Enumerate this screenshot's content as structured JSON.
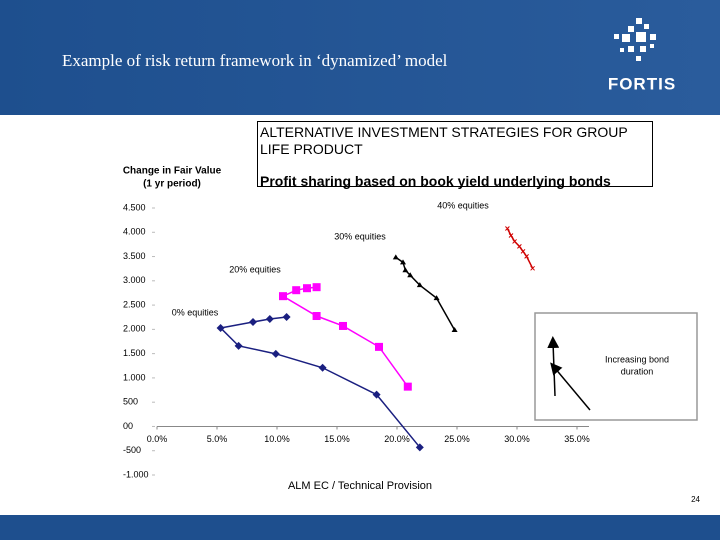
{
  "slide": {
    "title": "Example of risk return framework in ‘dynamized’ model",
    "logo": "FORTIS",
    "page_number": "24",
    "inset_text": [
      "Increasing bond",
      "duration"
    ]
  },
  "chart_data": {
    "type": "line",
    "title": "ALTERNATIVE INVESTMENT STRATEGIES FOR GROUP LIFE PRODUCT",
    "subtitle": "Profit sharing based on book yield underlying bonds",
    "ylabel": [
      "Change in Fair Value",
      "(1 yr period)"
    ],
    "xlabel": "ALM EC / Technical Provision",
    "xlim": [
      0,
      35
    ],
    "ylim": [
      -1000,
      4500
    ],
    "xticks": [
      {
        "value": 0,
        "label": "0.0%"
      },
      {
        "value": 5,
        "label": "5.0%"
      },
      {
        "value": 10,
        "label": "10.0%"
      },
      {
        "value": 15,
        "label": "15.0%"
      },
      {
        "value": 20,
        "label": "20.0%"
      },
      {
        "value": 25,
        "label": "25.0%"
      },
      {
        "value": 30,
        "label": "30.0%"
      },
      {
        "value": 35,
        "label": "35.0%"
      }
    ],
    "yticks": [
      {
        "value": 4500,
        "label": "4.500"
      },
      {
        "value": 4000,
        "label": "4.000"
      },
      {
        "value": 3500,
        "label": "3.500"
      },
      {
        "value": 3000,
        "label": "3.000"
      },
      {
        "value": 2500,
        "label": "2.500"
      },
      {
        "value": 2000,
        "label": "2.000"
      },
      {
        "value": 1500,
        "label": "1.500"
      },
      {
        "value": 1000,
        "label": "1.000"
      },
      {
        "value": 500,
        "label": "500"
      },
      {
        "value": 0,
        "label": "00"
      },
      {
        "value": -500,
        "label": "-500"
      },
      {
        "value": -1000,
        "label": "-1.000"
      }
    ],
    "series": [
      {
        "name": "0% equities",
        "color": "#1a1f80",
        "marker": "diamond",
        "x": [
          10.8,
          9.4,
          8.0,
          5.3,
          6.8,
          9.9,
          13.8,
          18.3,
          21.9
        ],
        "values": [
          2254,
          2213,
          2152,
          2029,
          1660,
          1496,
          1209,
          656,
          -430
        ]
      },
      {
        "name": "20% equities",
        "color": "#ff00ff",
        "marker": "square",
        "x": [
          13.3,
          12.5,
          11.6,
          10.5,
          13.3,
          15.5,
          18.5,
          20.9
        ],
        "values": [
          2869,
          2848,
          2807,
          2684,
          2275,
          2070,
          1639,
          820
        ]
      },
      {
        "name": "30% equities",
        "color": "#000000",
        "marker": "triangle",
        "x": [
          19.9,
          20.5,
          20.7,
          21.1,
          21.9,
          23.3,
          24.8
        ],
        "values": [
          3484,
          3381,
          3217,
          3115,
          2910,
          2643,
          1988
        ]
      },
      {
        "name": "40% equities",
        "color": "#d00000",
        "marker": "cross",
        "x": [
          29.2,
          29.5,
          29.8,
          30.2,
          30.5,
          30.8,
          31.3
        ],
        "values": [
          4078,
          3934,
          3811,
          3709,
          3607,
          3504,
          3258
        ]
      }
    ]
  }
}
